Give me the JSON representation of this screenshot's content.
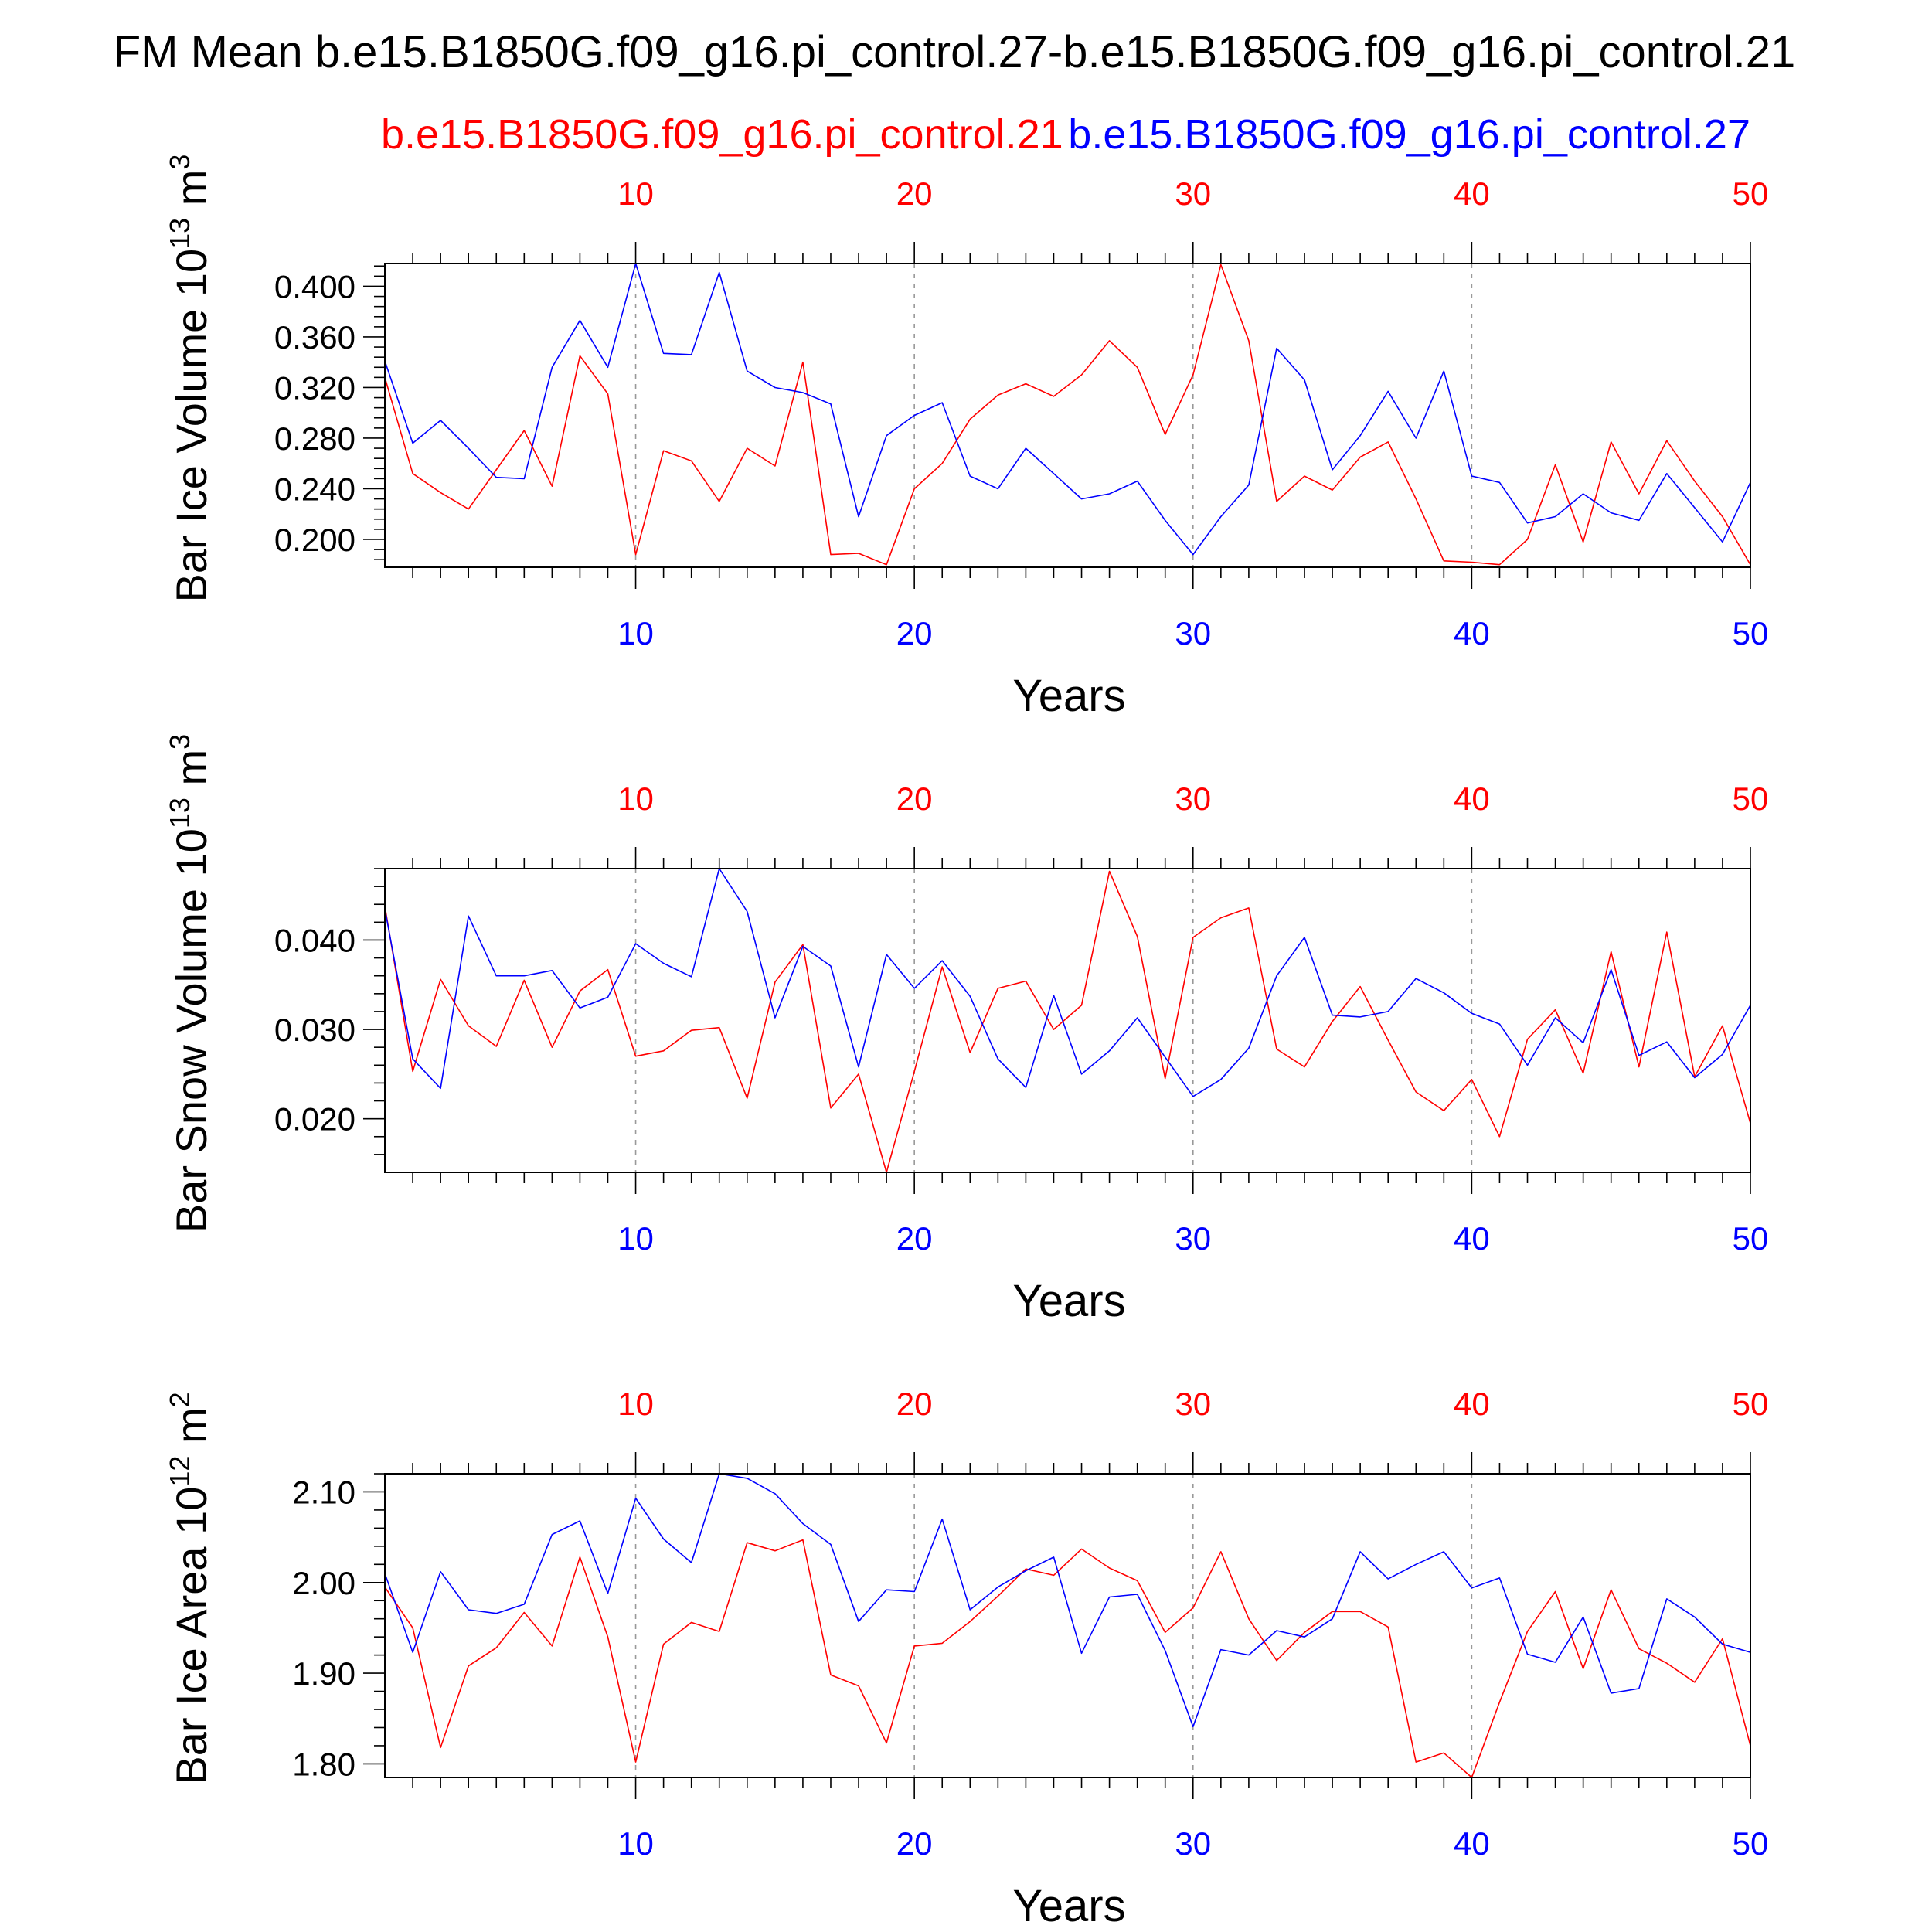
{
  "title": "FM Mean b.e15.B1850G.f09_g16.pi_control.27-b.e15.B1850G.f09_g16.pi_control.21",
  "legend": {
    "red_label": "b.e15.B1850G.f09_g16.pi_control.21",
    "blue_label": "b.e15.B1850G.f09_g16.pi_control.27"
  },
  "colors": {
    "red": "#ff0000",
    "blue": "#0000ff",
    "axis": "#000000",
    "grid": "#999999"
  },
  "chart_data": [
    {
      "type": "line",
      "ylabel": "Bar Ice Volume 10",
      "ylabel_exp": "13",
      "ylabel_unit": " m",
      "ylabel_unit_exp": "3",
      "xlabel": "Years",
      "xlim": [
        1,
        50
      ],
      "ylim": [
        0.178,
        0.418
      ],
      "x_ticks": [
        10,
        20,
        30,
        40,
        50
      ],
      "x_tick_labels": [
        "10",
        "20",
        "30",
        "40",
        "50"
      ],
      "y_ticks": [
        0.2,
        0.24,
        0.28,
        0.32,
        0.36,
        0.4
      ],
      "y_tick_labels": [
        "0.200",
        "0.240",
        "0.280",
        "0.320",
        "0.360",
        "0.400"
      ],
      "y_minor_step": 0.008,
      "grid": "dashed vertical at major x ticks",
      "series": [
        {
          "color": "red",
          "values": [
            0.328,
            0.252,
            0.237,
            0.224,
            0.255,
            0.286,
            0.242,
            0.345,
            0.315,
            0.188,
            0.27,
            0.262,
            0.23,
            0.272,
            0.258,
            0.34,
            0.188,
            0.189,
            0.18,
            0.24,
            0.26,
            0.295,
            0.314,
            0.323,
            0.313,
            0.33,
            0.357,
            0.336,
            0.283,
            0.33,
            0.417,
            0.357,
            0.23,
            0.25,
            0.239,
            0.265,
            0.277,
            0.232,
            0.183,
            0.182,
            0.18,
            0.2,
            0.259,
            0.198,
            0.277,
            0.236,
            0.278,
            0.246,
            0.218,
            0.18
          ]
        },
        {
          "color": "blue",
          "values": [
            0.341,
            0.276,
            0.294,
            0.272,
            0.249,
            0.248,
            0.336,
            0.373,
            0.336,
            0.418,
            0.347,
            0.346,
            0.411,
            0.333,
            0.32,
            0.316,
            0.307,
            0.218,
            0.282,
            0.298,
            0.308,
            0.25,
            0.24,
            0.272,
            0.252,
            0.232,
            0.236,
            0.246,
            0.215,
            0.188,
            0.218,
            0.243,
            0.351,
            0.326,
            0.255,
            0.282,
            0.317,
            0.28,
            0.333,
            0.25,
            0.245,
            0.213,
            0.218,
            0.236,
            0.221,
            0.215,
            0.252,
            0.225,
            0.198,
            0.245
          ]
        }
      ]
    },
    {
      "type": "line",
      "ylabel": "Bar Snow Volume 10",
      "ylabel_exp": "13",
      "ylabel_unit": " m",
      "ylabel_unit_exp": "3",
      "xlabel": "Years",
      "xlim": [
        1,
        50
      ],
      "ylim": [
        0.014,
        0.048
      ],
      "x_ticks": [
        10,
        20,
        30,
        40,
        50
      ],
      "x_tick_labels": [
        "10",
        "20",
        "30",
        "40",
        "50"
      ],
      "y_ticks": [
        0.02,
        0.03,
        0.04
      ],
      "y_tick_labels": [
        "0.020",
        "0.030",
        "0.040"
      ],
      "y_minor_step": 0.002,
      "grid": "dashed vertical at major x ticks",
      "series": [
        {
          "color": "red",
          "values": [
            0.0438,
            0.0253,
            0.0356,
            0.0304,
            0.0281,
            0.0355,
            0.028,
            0.0343,
            0.0367,
            0.027,
            0.0276,
            0.0299,
            0.0302,
            0.0223,
            0.0353,
            0.0395,
            0.0212,
            0.025,
            0.014,
            0.0253,
            0.037,
            0.0274,
            0.0346,
            0.0354,
            0.03,
            0.0327,
            0.0477,
            0.0404,
            0.0245,
            0.0403,
            0.0425,
            0.0436,
            0.0278,
            0.0258,
            0.0309,
            0.0348,
            0.0288,
            0.023,
            0.0209,
            0.0244,
            0.018,
            0.0289,
            0.0322,
            0.0251,
            0.0387,
            0.0258,
            0.0409,
            0.0247,
            0.0304,
            0.0195
          ]
        },
        {
          "color": "blue",
          "values": [
            0.0435,
            0.0267,
            0.0234,
            0.0427,
            0.036,
            0.036,
            0.0366,
            0.0324,
            0.0336,
            0.0396,
            0.0374,
            0.0359,
            0.048,
            0.0432,
            0.0313,
            0.0393,
            0.0371,
            0.0258,
            0.0384,
            0.0346,
            0.0377,
            0.0337,
            0.0267,
            0.0235,
            0.0338,
            0.025,
            0.0276,
            0.0313,
            0.0269,
            0.0225,
            0.0244,
            0.0279,
            0.036,
            0.0403,
            0.0316,
            0.0314,
            0.032,
            0.0357,
            0.0341,
            0.0318,
            0.0306,
            0.026,
            0.0313,
            0.0285,
            0.0367,
            0.0271,
            0.0286,
            0.0246,
            0.0272,
            0.0327
          ]
        }
      ]
    },
    {
      "type": "line",
      "ylabel": "Bar Ice Area 10",
      "ylabel_exp": "12",
      "ylabel_unit": " m",
      "ylabel_unit_exp": "2",
      "xlabel": "Years",
      "xlim": [
        1,
        50
      ],
      "ylim": [
        1.785,
        2.12
      ],
      "x_ticks": [
        10,
        20,
        30,
        40,
        50
      ],
      "x_tick_labels": [
        "10",
        "20",
        "30",
        "40",
        "50"
      ],
      "y_ticks": [
        1.8,
        1.9,
        2.0,
        2.1
      ],
      "y_tick_labels": [
        "1.80",
        "1.90",
        "2.00",
        "2.10"
      ],
      "y_minor_step": 0.02,
      "grid": "dashed vertical at major x ticks",
      "series": [
        {
          "color": "red",
          "values": [
            1.995,
            1.95,
            1.818,
            1.908,
            1.928,
            1.967,
            1.93,
            2.028,
            1.94,
            1.802,
            1.932,
            1.956,
            1.946,
            2.044,
            2.035,
            2.047,
            1.898,
            1.886,
            1.823,
            1.93,
            1.933,
            1.957,
            1.985,
            2.015,
            2.008,
            2.037,
            2.016,
            2.002,
            1.945,
            1.972,
            2.034,
            1.96,
            1.914,
            1.945,
            1.968,
            1.968,
            1.951,
            1.802,
            1.812,
            1.785,
            1.868,
            1.946,
            1.99,
            1.905,
            1.992,
            1.927,
            1.911,
            1.89,
            1.938,
            1.82
          ]
        },
        {
          "color": "blue",
          "values": [
            2.01,
            1.923,
            2.012,
            1.97,
            1.966,
            1.976,
            2.053,
            2.068,
            1.988,
            2.093,
            2.048,
            2.022,
            2.12,
            2.115,
            2.098,
            2.065,
            2.042,
            1.957,
            1.992,
            1.99,
            2.07,
            1.97,
            1.995,
            2.013,
            2.028,
            1.922,
            1.984,
            1.987,
            1.925,
            1.841,
            1.926,
            1.92,
            1.947,
            1.94,
            1.96,
            2.034,
            2.004,
            2.02,
            2.034,
            1.994,
            2.005,
            1.921,
            1.912,
            1.962,
            1.878,
            1.883,
            1.982,
            1.962,
            1.932,
            1.923
          ]
        }
      ]
    }
  ]
}
